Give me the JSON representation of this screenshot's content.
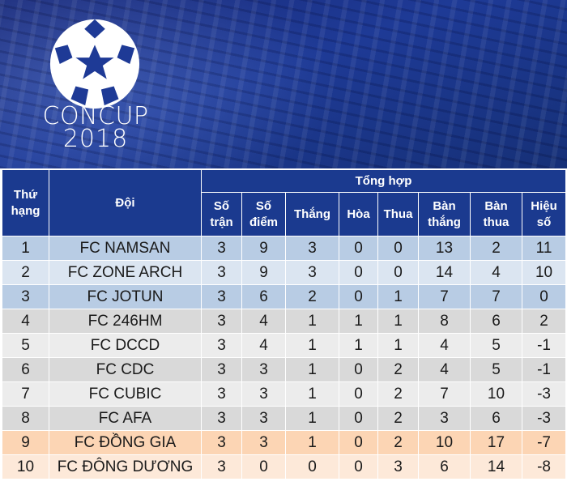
{
  "banner": {
    "logo_line1": "CONCUP",
    "logo_line2": "2018"
  },
  "table": {
    "headers": {
      "rank": "Thứ hạng",
      "team": "Đội",
      "group": "Tổng hợp",
      "played": "Số trận",
      "points": "Số điểm",
      "won": "Thắng",
      "drawn": "Hòa",
      "lost": "Thua",
      "goals_for": "Bàn thắng",
      "goals_against": "Bàn thua",
      "goal_diff": "Hiệu số"
    },
    "rows": [
      {
        "rank": "1",
        "team": "FC NAMSAN",
        "played": "3",
        "points": "9",
        "won": "3",
        "drawn": "0",
        "lost": "0",
        "goals_for": "13",
        "goals_against": "2",
        "goal_diff": "11"
      },
      {
        "rank": "2",
        "team": "FC ZONE ARCH",
        "played": "3",
        "points": "9",
        "won": "3",
        "drawn": "0",
        "lost": "0",
        "goals_for": "14",
        "goals_against": "4",
        "goal_diff": "10"
      },
      {
        "rank": "3",
        "team": "FC JOTUN",
        "played": "3",
        "points": "6",
        "won": "2",
        "drawn": "0",
        "lost": "1",
        "goals_for": "7",
        "goals_against": "7",
        "goal_diff": "0"
      },
      {
        "rank": "4",
        "team": "FC 246HM",
        "played": "3",
        "points": "4",
        "won": "1",
        "drawn": "1",
        "lost": "1",
        "goals_for": "8",
        "goals_against": "6",
        "goal_diff": "2"
      },
      {
        "rank": "5",
        "team": "FC DCCD",
        "played": "3",
        "points": "4",
        "won": "1",
        "drawn": "1",
        "lost": "1",
        "goals_for": "4",
        "goals_against": "5",
        "goal_diff": "-1"
      },
      {
        "rank": "6",
        "team": "FC CDC",
        "played": "3",
        "points": "3",
        "won": "1",
        "drawn": "0",
        "lost": "2",
        "goals_for": "4",
        "goals_against": "5",
        "goal_diff": "-1"
      },
      {
        "rank": "7",
        "team": "FC CUBIC",
        "played": "3",
        "points": "3",
        "won": "1",
        "drawn": "0",
        "lost": "2",
        "goals_for": "7",
        "goals_against": "10",
        "goal_diff": "-3"
      },
      {
        "rank": "8",
        "team": "FC AFA",
        "played": "3",
        "points": "3",
        "won": "1",
        "drawn": "0",
        "lost": "2",
        "goals_for": "3",
        "goals_against": "6",
        "goal_diff": "-3"
      },
      {
        "rank": "9",
        "team": "FC ĐỒNG GIA",
        "played": "3",
        "points": "3",
        "won": "1",
        "drawn": "0",
        "lost": "2",
        "goals_for": "10",
        "goals_against": "17",
        "goal_diff": "-7"
      },
      {
        "rank": "10",
        "team": "FC ĐÔNG DƯƠNG",
        "played": "3",
        "points": "0",
        "won": "0",
        "drawn": "0",
        "lost": "3",
        "goals_for": "6",
        "goals_against": "14",
        "goal_diff": "-8"
      }
    ]
  },
  "colors": {
    "header_bg": "#1b3a8f",
    "banner_bg": "#1e3a96",
    "top_rows": "#b8cce4",
    "mid_rows": "#d9d9d9",
    "bottom_rows": "#fcd5b4"
  }
}
